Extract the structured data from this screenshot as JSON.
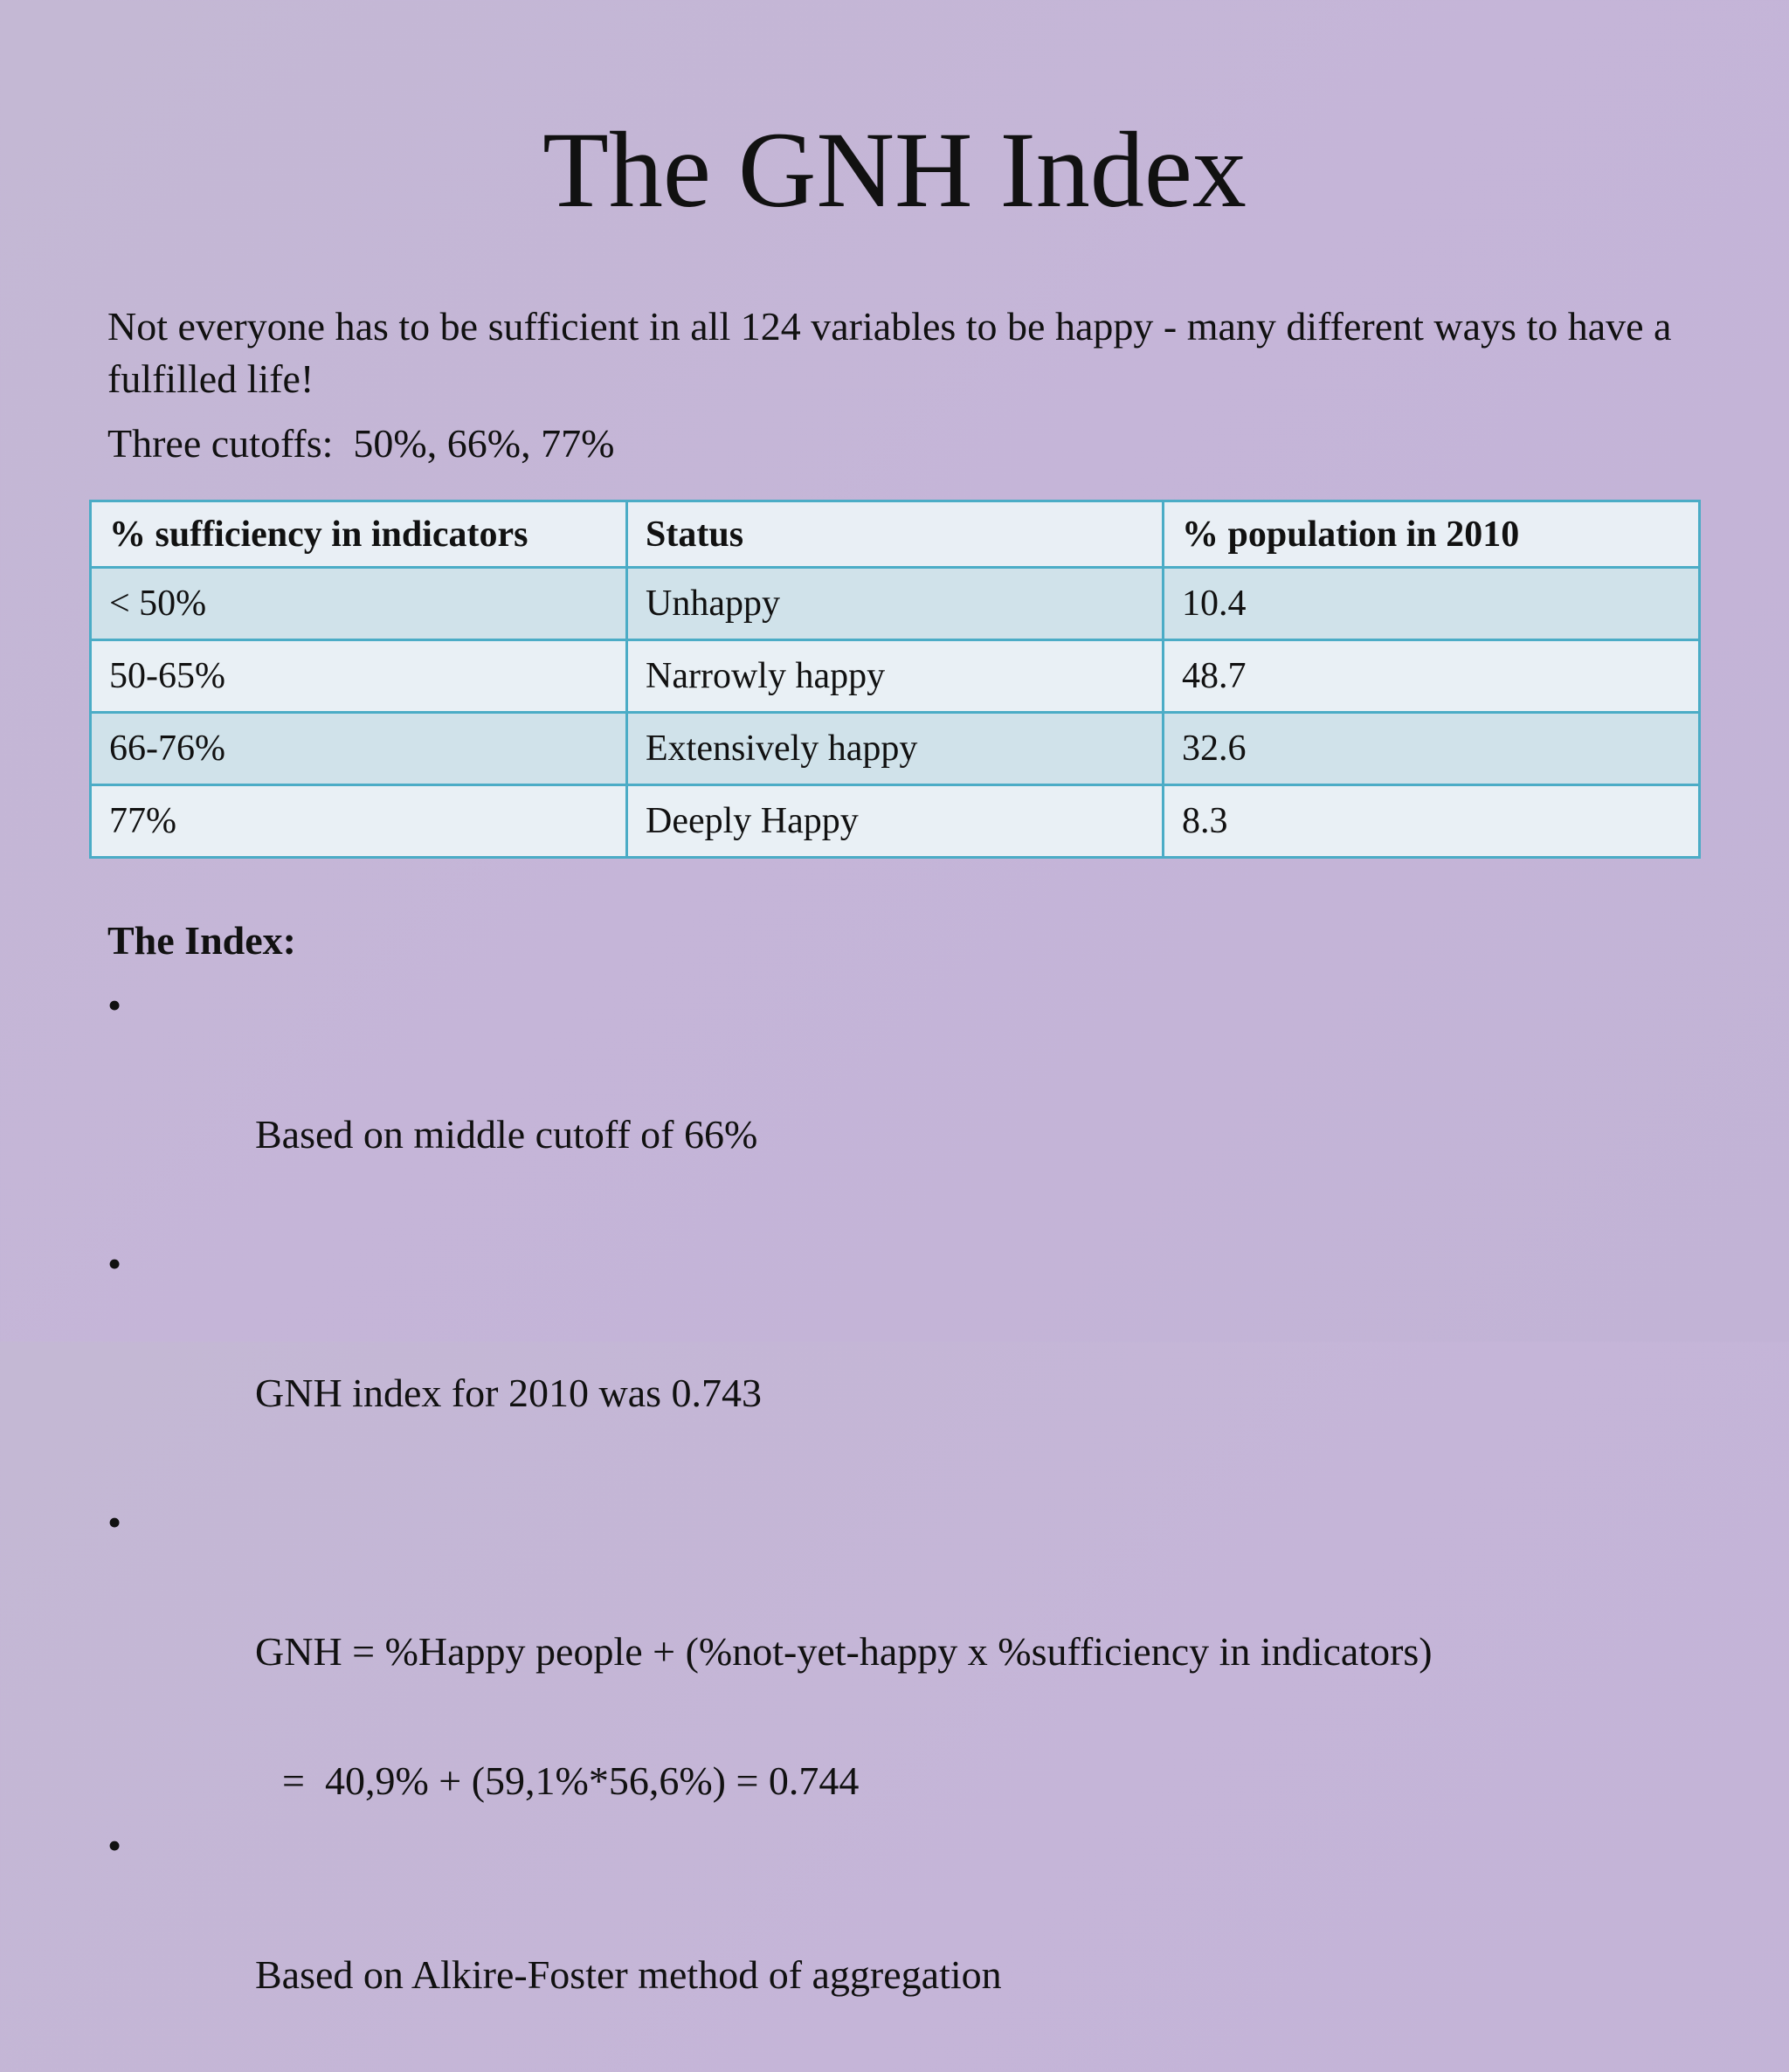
{
  "title": "The GNH Index",
  "intro": "Not everyone has to be sufficient in all 124 variables to be happy - many different ways to have a fulfilled life!",
  "cutoffs": "Three cutoffs:  50%, 66%, 77%",
  "table": {
    "headers": [
      "% sufficiency in indicators",
      "Status",
      "% population in 2010"
    ],
    "rows": [
      [
        "< 50%",
        "Unhappy",
        "10.4"
      ],
      [
        "50-65%",
        "Narrowly happy",
        "48.7"
      ],
      [
        "66-76%",
        "Extensively happy",
        "32.6"
      ],
      [
        "77%",
        "Deeply Happy",
        "8.3"
      ]
    ]
  },
  "index": {
    "heading": "The Index:",
    "bullet_symbol": "•",
    "bullets": [
      "Based on middle cutoff of 66%",
      "GNH index for 2010 was 0.743",
      "GNH = %Happy people + (%not-yet-happy x %sufficiency in indicators)"
    ],
    "formula_continuation": "=  40,9% + (59,1%*56,6%) = 0.744",
    "last_bullet": "Based on Alkire-Foster method of aggregation"
  }
}
